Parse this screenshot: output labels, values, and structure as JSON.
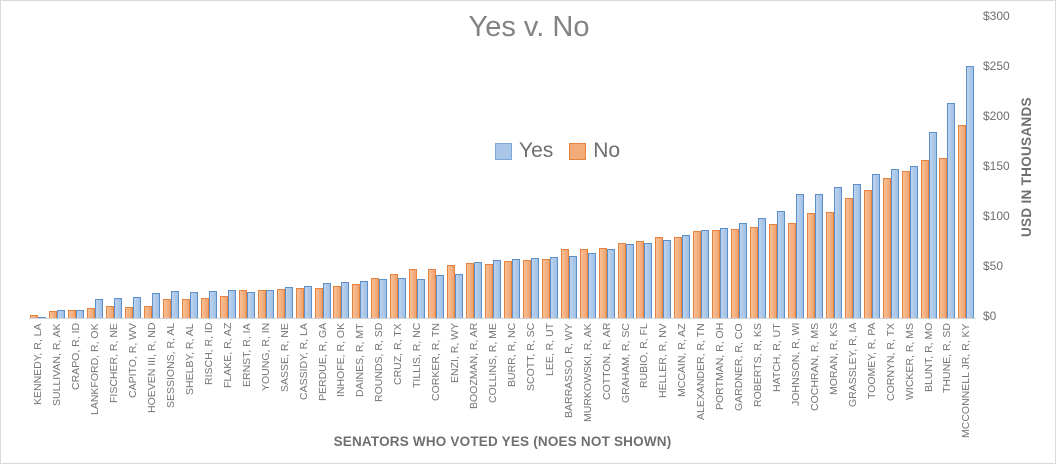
{
  "chart_data": {
    "type": "bar",
    "title": "Yes v. No",
    "xlabel": "SENATORS WHO VOTED YES (NOES NOT SHOWN)",
    "ylabel": "USD IN THOUSANDS",
    "ylim": [
      0,
      300
    ],
    "grid": false,
    "legend_position": "upper-center-inside",
    "yticks": [
      {
        "value": 0,
        "label": "$0"
      },
      {
        "value": 50,
        "label": "$50"
      },
      {
        "value": 100,
        "label": "$100"
      },
      {
        "value": 150,
        "label": "$150"
      },
      {
        "value": 200,
        "label": "$200"
      },
      {
        "value": 250,
        "label": "$250"
      },
      {
        "value": 300,
        "label": "$300"
      }
    ],
    "cluster_series_order": [
      "No",
      "Yes"
    ],
    "categories": [
      "KENNEDY, R, LA",
      "SULLIVAN, R, AK",
      "CRAPO, R, ID",
      "LANKFORD, R, OK",
      "FISCHER, R, NE",
      "CAPITO, R, WV",
      "HOEVEN III, R, ND",
      "SESSIONS, R, AL",
      "SHELBY, R, AL",
      "RISCH, R, ID",
      "FLAKE, R, AZ",
      "ERNST, R, IA",
      "YOUNG, R, IN",
      "SASSE, R, NE",
      "CASSIDY, R, LA",
      "PERDUE, R, GA",
      "INHOFE, R, OK",
      "DAINES, R, MT",
      "ROUNDS, R, SD",
      "CRUZ, R, TX",
      "TILLIS, R, NC",
      "CORKER, R, TN",
      "ENZI, R, WY",
      "BOOZMAN, R, AR",
      "COLLINS, R, ME",
      "BURR, R, NC",
      "SCOTT, R, SC",
      "LEE, R, UT",
      "BARRASSO, R, WY",
      "MURKOWSKI, R, AK",
      "COTTON, R, AR",
      "GRAHAM, R, SC",
      "RUBIO, R, FL",
      "HELLER, R, NV",
      "MCCAIN, R, AZ",
      "ALEXANDER, R, TN",
      "PORTMAN, R, OH",
      "GARDNER, R, CO",
      "ROBERTS, R, KS",
      "HATCH, R, UT",
      "JOHNSON, R, WI",
      "COCHRAN, R, MS",
      "MORAN, R, KS",
      "GRASSLEY, R, IA",
      "TOOMEY, R, PA",
      "CORNYN, R, TX",
      "WICKER, R, MS",
      "BLUNT, R, MO",
      "THUNE, R, SD",
      "MCCONNELL JR, R, KY"
    ],
    "series": [
      {
        "name": "Yes",
        "fill_color": "#a9c6e8",
        "border_color": "#5e8fcb",
        "values": [
          1,
          8,
          8,
          19,
          20,
          21,
          25,
          27,
          26,
          27,
          28,
          26,
          28,
          31,
          32,
          35,
          36,
          37,
          39,
          40,
          39,
          43,
          44,
          56,
          58,
          59,
          60,
          61,
          62,
          65,
          69,
          74,
          75,
          78,
          83,
          88,
          90,
          95,
          100,
          107,
          124,
          124,
          131,
          134,
          144,
          149,
          152,
          186,
          215,
          252
        ]
      },
      {
        "name": "No",
        "fill_color": "#f3ab79",
        "border_color": "#e5823e",
        "values": [
          3,
          7,
          8,
          10,
          12,
          11,
          12,
          19,
          19,
          20,
          22,
          28,
          28,
          29,
          30,
          30,
          32,
          34,
          40,
          44,
          49,
          49,
          53,
          55,
          54,
          57,
          58,
          59,
          69,
          69,
          70,
          75,
          77,
          81,
          81,
          87,
          88,
          89,
          91,
          94,
          95,
          105,
          106,
          120,
          128,
          140,
          147,
          158,
          160,
          193
        ]
      }
    ],
    "text_color": "#6e6e6e",
    "title_color": "#828282",
    "axis_line_color": "#d4d4dc"
  }
}
